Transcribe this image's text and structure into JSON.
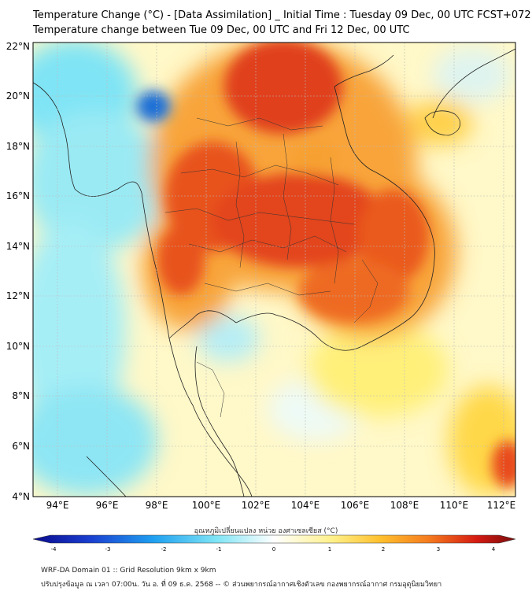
{
  "title_line1": "Temperature Change (°C) - [Data Assimilation] _ Initial Time : Tuesday 09 Dec, 00 UTC FCST+072",
  "title_line2": "Temperature change between Tue 09 Dec, 00 UTC and Fri 12 Dec, 00 UTC",
  "lat_ticks": [
    "22°N",
    "20°N",
    "18°N",
    "16°N",
    "14°N",
    "12°N",
    "10°N",
    "8°N",
    "6°N",
    "4°N"
  ],
  "lon_ticks": [
    "94°E",
    "96°E",
    "98°E",
    "100°E",
    "102°E",
    "104°E",
    "106°E",
    "108°E",
    "110°E",
    "112°E"
  ],
  "colorbar": {
    "label": "อุณหภูมิเปลี่ยนแปลง หน่วย องศาเซลเซียส (°C)",
    "ticks": [
      "-4",
      "-3",
      "-2",
      "-1",
      "0",
      "1",
      "2",
      "3",
      "4"
    ],
    "min": -4,
    "max": 4
  },
  "colors": {
    "cold_extreme": "#0a0a8c",
    "cold": "#1a6fd6",
    "cool": "#4fd0f0",
    "neutral": "#ffffff",
    "warm": "#ffe87a",
    "hot": "#f57b1e",
    "hottest": "#d41a12",
    "extreme": "#7a0c0c"
  },
  "footer_line1": "WRF-DA Domain 01 :: Grid Resolution 9km x 9km",
  "footer_line2": "ปรับปรุงข้อมูล ณ เวลา 07:00น. วัน อ. ที่ 09 ธ.ค. 2568 -- © ส่วนพยากรณ์อากาศเชิงตัวเลข กองพยากรณ์อากาศ กรมอุตุนิยมวิทยา"
}
